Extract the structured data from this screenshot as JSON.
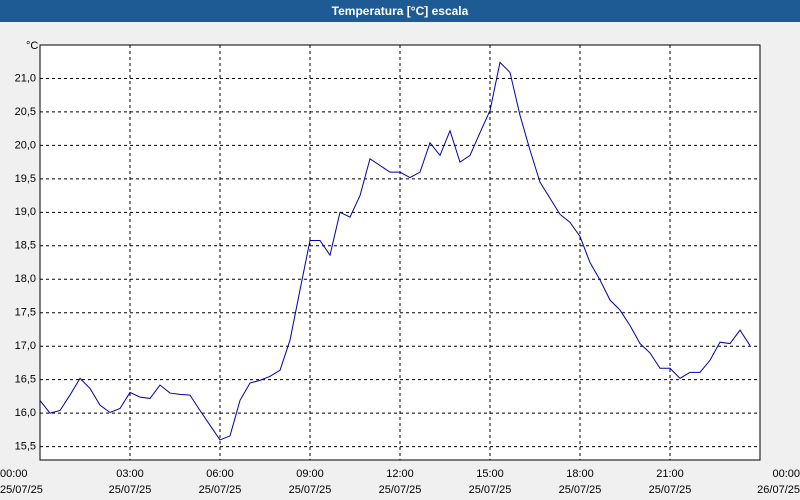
{
  "chart_data": {
    "type": "line",
    "title": "Temperatura [°C] escala",
    "y_label": "°C",
    "x": [
      0,
      20,
      40,
      60,
      80,
      100,
      120,
      140,
      160,
      180,
      200,
      220,
      240,
      260,
      280,
      300,
      320,
      340,
      360,
      380,
      400,
      420,
      440,
      460,
      480,
      500,
      520,
      540,
      560,
      580,
      600,
      620,
      640,
      660,
      680,
      700,
      720,
      740,
      760,
      780,
      800,
      820,
      840,
      860,
      880,
      900,
      920,
      940,
      960,
      980,
      1000,
      1020,
      1040,
      1060,
      1080,
      1100,
      1120,
      1140,
      1160,
      1180,
      1200,
      1220,
      1240,
      1260,
      1280,
      1300,
      1320,
      1340,
      1360,
      1380,
      1400,
      1420
    ],
    "series": [
      {
        "name": "Temperatura",
        "color": "#0000a0",
        "values": [
          16.19,
          16.0,
          16.04,
          16.27,
          16.52,
          16.37,
          16.12,
          16.01,
          16.07,
          16.31,
          16.24,
          16.22,
          16.42,
          16.3,
          16.28,
          16.27,
          16.04,
          15.82,
          15.6,
          15.66,
          16.19,
          16.45,
          16.49,
          16.55,
          16.64,
          17.09,
          17.84,
          18.58,
          18.58,
          18.36,
          19.0,
          18.93,
          19.25,
          19.8,
          19.7,
          19.6,
          19.6,
          19.52,
          19.6,
          20.04,
          19.85,
          20.22,
          19.75,
          19.85,
          20.19,
          20.52,
          21.24,
          21.09,
          20.45,
          19.93,
          19.45,
          19.21,
          18.97,
          18.85,
          18.64,
          18.25,
          17.99,
          17.69,
          17.54,
          17.31,
          17.04,
          16.9,
          16.67,
          16.67,
          16.52,
          16.61,
          16.61,
          16.79,
          17.06,
          17.04,
          17.24,
          17.01
        ]
      }
    ],
    "xlim": [
      0,
      1440
    ],
    "xticks": [
      {
        "value": 0,
        "label": "00:00",
        "date": "25/07/25"
      },
      {
        "value": 180,
        "label": "03:00",
        "date": "25/07/25"
      },
      {
        "value": 360,
        "label": "06:00",
        "date": "25/07/25"
      },
      {
        "value": 540,
        "label": "09:00",
        "date": "25/07/25"
      },
      {
        "value": 720,
        "label": "12:00",
        "date": "25/07/25"
      },
      {
        "value": 900,
        "label": "15:00",
        "date": "25/07/25"
      },
      {
        "value": 1080,
        "label": "18:00",
        "date": "25/07/25"
      },
      {
        "value": 1260,
        "label": "21:00",
        "date": "25/07/25"
      },
      {
        "value": 1440,
        "label": "00:00",
        "date": "26/07/25"
      }
    ],
    "ylim": [
      15.3,
      21.5
    ],
    "yticks": [
      {
        "value": 15.5,
        "label": "15,5"
      },
      {
        "value": 16,
        "label": "16,0"
      },
      {
        "value": 16.5,
        "label": "16,5"
      },
      {
        "value": 17,
        "label": "17,0"
      },
      {
        "value": 17.5,
        "label": "17,5"
      },
      {
        "value": 18,
        "label": "18,0"
      },
      {
        "value": 18.5,
        "label": "18,5"
      },
      {
        "value": 19,
        "label": "19,0"
      },
      {
        "value": 19.5,
        "label": "19,5"
      },
      {
        "value": 20,
        "label": "20,0"
      },
      {
        "value": 20.5,
        "label": "20,5"
      },
      {
        "value": 21,
        "label": "21,0"
      }
    ],
    "grid": true
  }
}
